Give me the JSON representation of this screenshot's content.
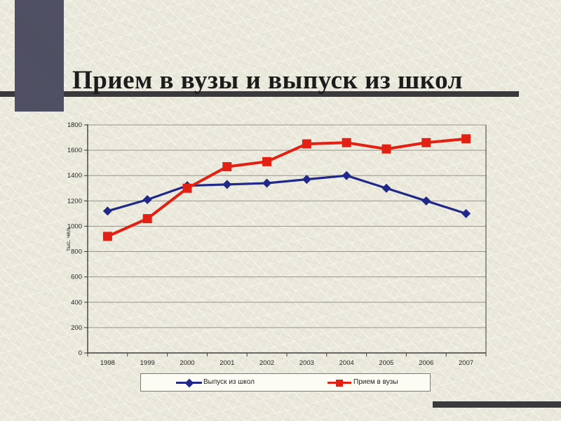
{
  "slide": {
    "title": "Прием в вузы и выпуск из школ"
  },
  "colors": {
    "accent_bar": "#4b4c5f",
    "rule_bar": "#3a3a3c",
    "grid_line": "#98968b",
    "axis_line": "#3c3c3c",
    "series_school": "#20298a",
    "series_university": "#e32014",
    "legend_bg": "#fdfcf4"
  },
  "chart_data": {
    "type": "line",
    "title": "",
    "xlabel": "",
    "ylabel": "тыс. чел.",
    "x": [
      "1998",
      "1999",
      "2000",
      "2001",
      "2002",
      "2003",
      "2004",
      "2005",
      "2006",
      "2007"
    ],
    "series": [
      {
        "name": "Выпуск из школ",
        "color": "#20298a",
        "marker": "diamond",
        "values": [
          1120,
          1210,
          1320,
          1330,
          1340,
          1370,
          1400,
          1300,
          1200,
          1100
        ]
      },
      {
        "name": "Прием в вузы",
        "color": "#e32014",
        "marker": "square",
        "values": [
          920,
          1060,
          1300,
          1470,
          1510,
          1650,
          1660,
          1610,
          1660,
          1690
        ]
      }
    ],
    "ylim": [
      0,
      1800
    ],
    "yticks": [
      0,
      200,
      400,
      600,
      800,
      1000,
      1200,
      1400,
      1600,
      1800
    ],
    "grid": true,
    "legend_position": "bottom"
  }
}
